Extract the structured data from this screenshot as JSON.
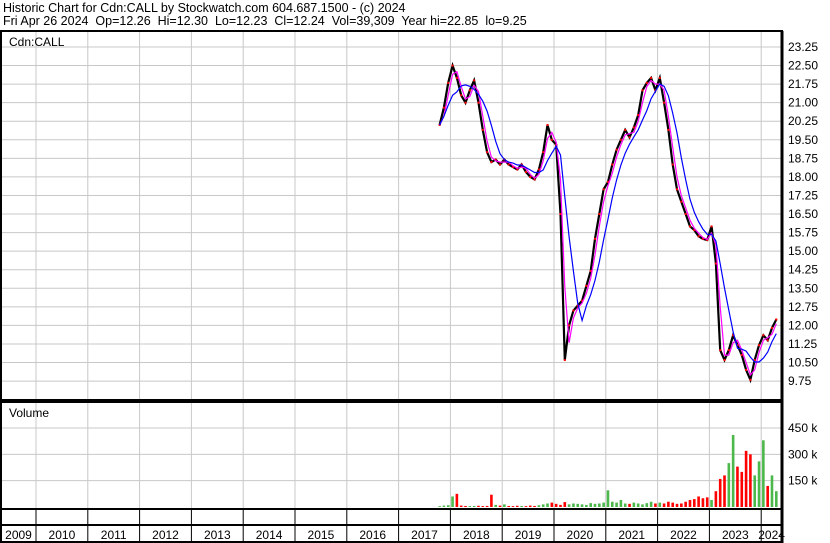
{
  "header": {
    "line1": "Historic Chart for Cdn:CALL by Stockwatch.com 604.687.1500 - (c) 2024",
    "line2": "Fri Apr 26 2024  Op=12.26  Hi=12.30  Lo=12.23  Cl=12.24  Vol=39,309  Year hi=22.85  lo=9.25"
  },
  "chart_data": [
    {
      "type": "line",
      "title": "Cdn:CALL",
      "ylim": [
        9.25,
        23.6
      ],
      "yticks": [
        "23.25",
        "22.50",
        "21.75",
        "21.00",
        "20.25",
        "19.50",
        "18.75",
        "18.00",
        "17.25",
        "16.50",
        "15.75",
        "15.00",
        "14.25",
        "13.50",
        "12.75",
        "12.00",
        "11.25",
        "10.50",
        "9.75"
      ],
      "grid": true,
      "colors": {
        "price": "#000000",
        "close_marks": "#ff0000",
        "ma_short": "#ff00ff",
        "ma_long": "#0000ff"
      },
      "start": "2017-10",
      "interval": "month",
      "close": [
        20.1,
        20.8,
        21.8,
        22.5,
        22.0,
        21.3,
        21.0,
        21.5,
        21.9,
        21.0,
        19.9,
        19.0,
        18.6,
        18.7,
        18.5,
        18.7,
        18.5,
        18.4,
        18.3,
        18.5,
        18.2,
        18.0,
        17.9,
        18.3,
        19.0,
        20.1,
        19.5,
        19.3,
        16.5,
        10.6,
        12.0,
        12.6,
        12.8,
        13.0,
        13.6,
        14.2,
        15.5,
        16.5,
        17.5,
        17.8,
        18.5,
        19.1,
        19.5,
        19.9,
        19.6,
        20.0,
        20.5,
        21.5,
        21.8,
        22.0,
        21.5,
        22.0,
        21.0,
        19.9,
        18.5,
        17.5,
        17.0,
        16.5,
        16.0,
        15.85,
        15.6,
        15.5,
        15.45,
        16.0,
        14.5,
        11.0,
        10.6,
        11.0,
        11.6,
        11.2,
        10.8,
        10.2,
        9.8,
        10.6,
        11.2,
        11.6,
        11.4,
        11.9,
        12.24
      ]
    },
    {
      "type": "bar",
      "title": "Volume",
      "ylim": [
        0,
        500000
      ],
      "yticks": [
        "450 k",
        "300 k",
        "150 k"
      ],
      "grid": true,
      "colors": {
        "up": "#4cb84c",
        "down": "#ff0000"
      },
      "start": "2017-10",
      "interval": "month",
      "values": [
        5000,
        8000,
        10000,
        60000,
        75000,
        8000,
        6000,
        5000,
        6000,
        7000,
        5000,
        6000,
        70000,
        12000,
        8000,
        15000,
        6000,
        5000,
        7000,
        6000,
        5000,
        8000,
        6000,
        10000,
        15000,
        20000,
        25000,
        18000,
        12000,
        28000,
        15000,
        20000,
        18000,
        15000,
        12000,
        22000,
        18000,
        20000,
        25000,
        95000,
        30000,
        25000,
        40000,
        20000,
        18000,
        25000,
        20000,
        15000,
        22000,
        30000,
        20000,
        25000,
        20000,
        30000,
        25000,
        18000,
        20000,
        30000,
        40000,
        45000,
        60000,
        50000,
        55000,
        40000,
        90000,
        160000,
        180000,
        250000,
        410000,
        230000,
        200000,
        320000,
        300000,
        180000,
        260000,
        380000,
        120000,
        180000,
        90000
      ]
    }
  ],
  "x_axis": {
    "years": [
      "2009",
      "2010",
      "2011",
      "2012",
      "2013",
      "2014",
      "2015",
      "2016",
      "2017",
      "2018",
      "2019",
      "2020",
      "2021",
      "2022",
      "2023",
      "2024"
    ]
  }
}
